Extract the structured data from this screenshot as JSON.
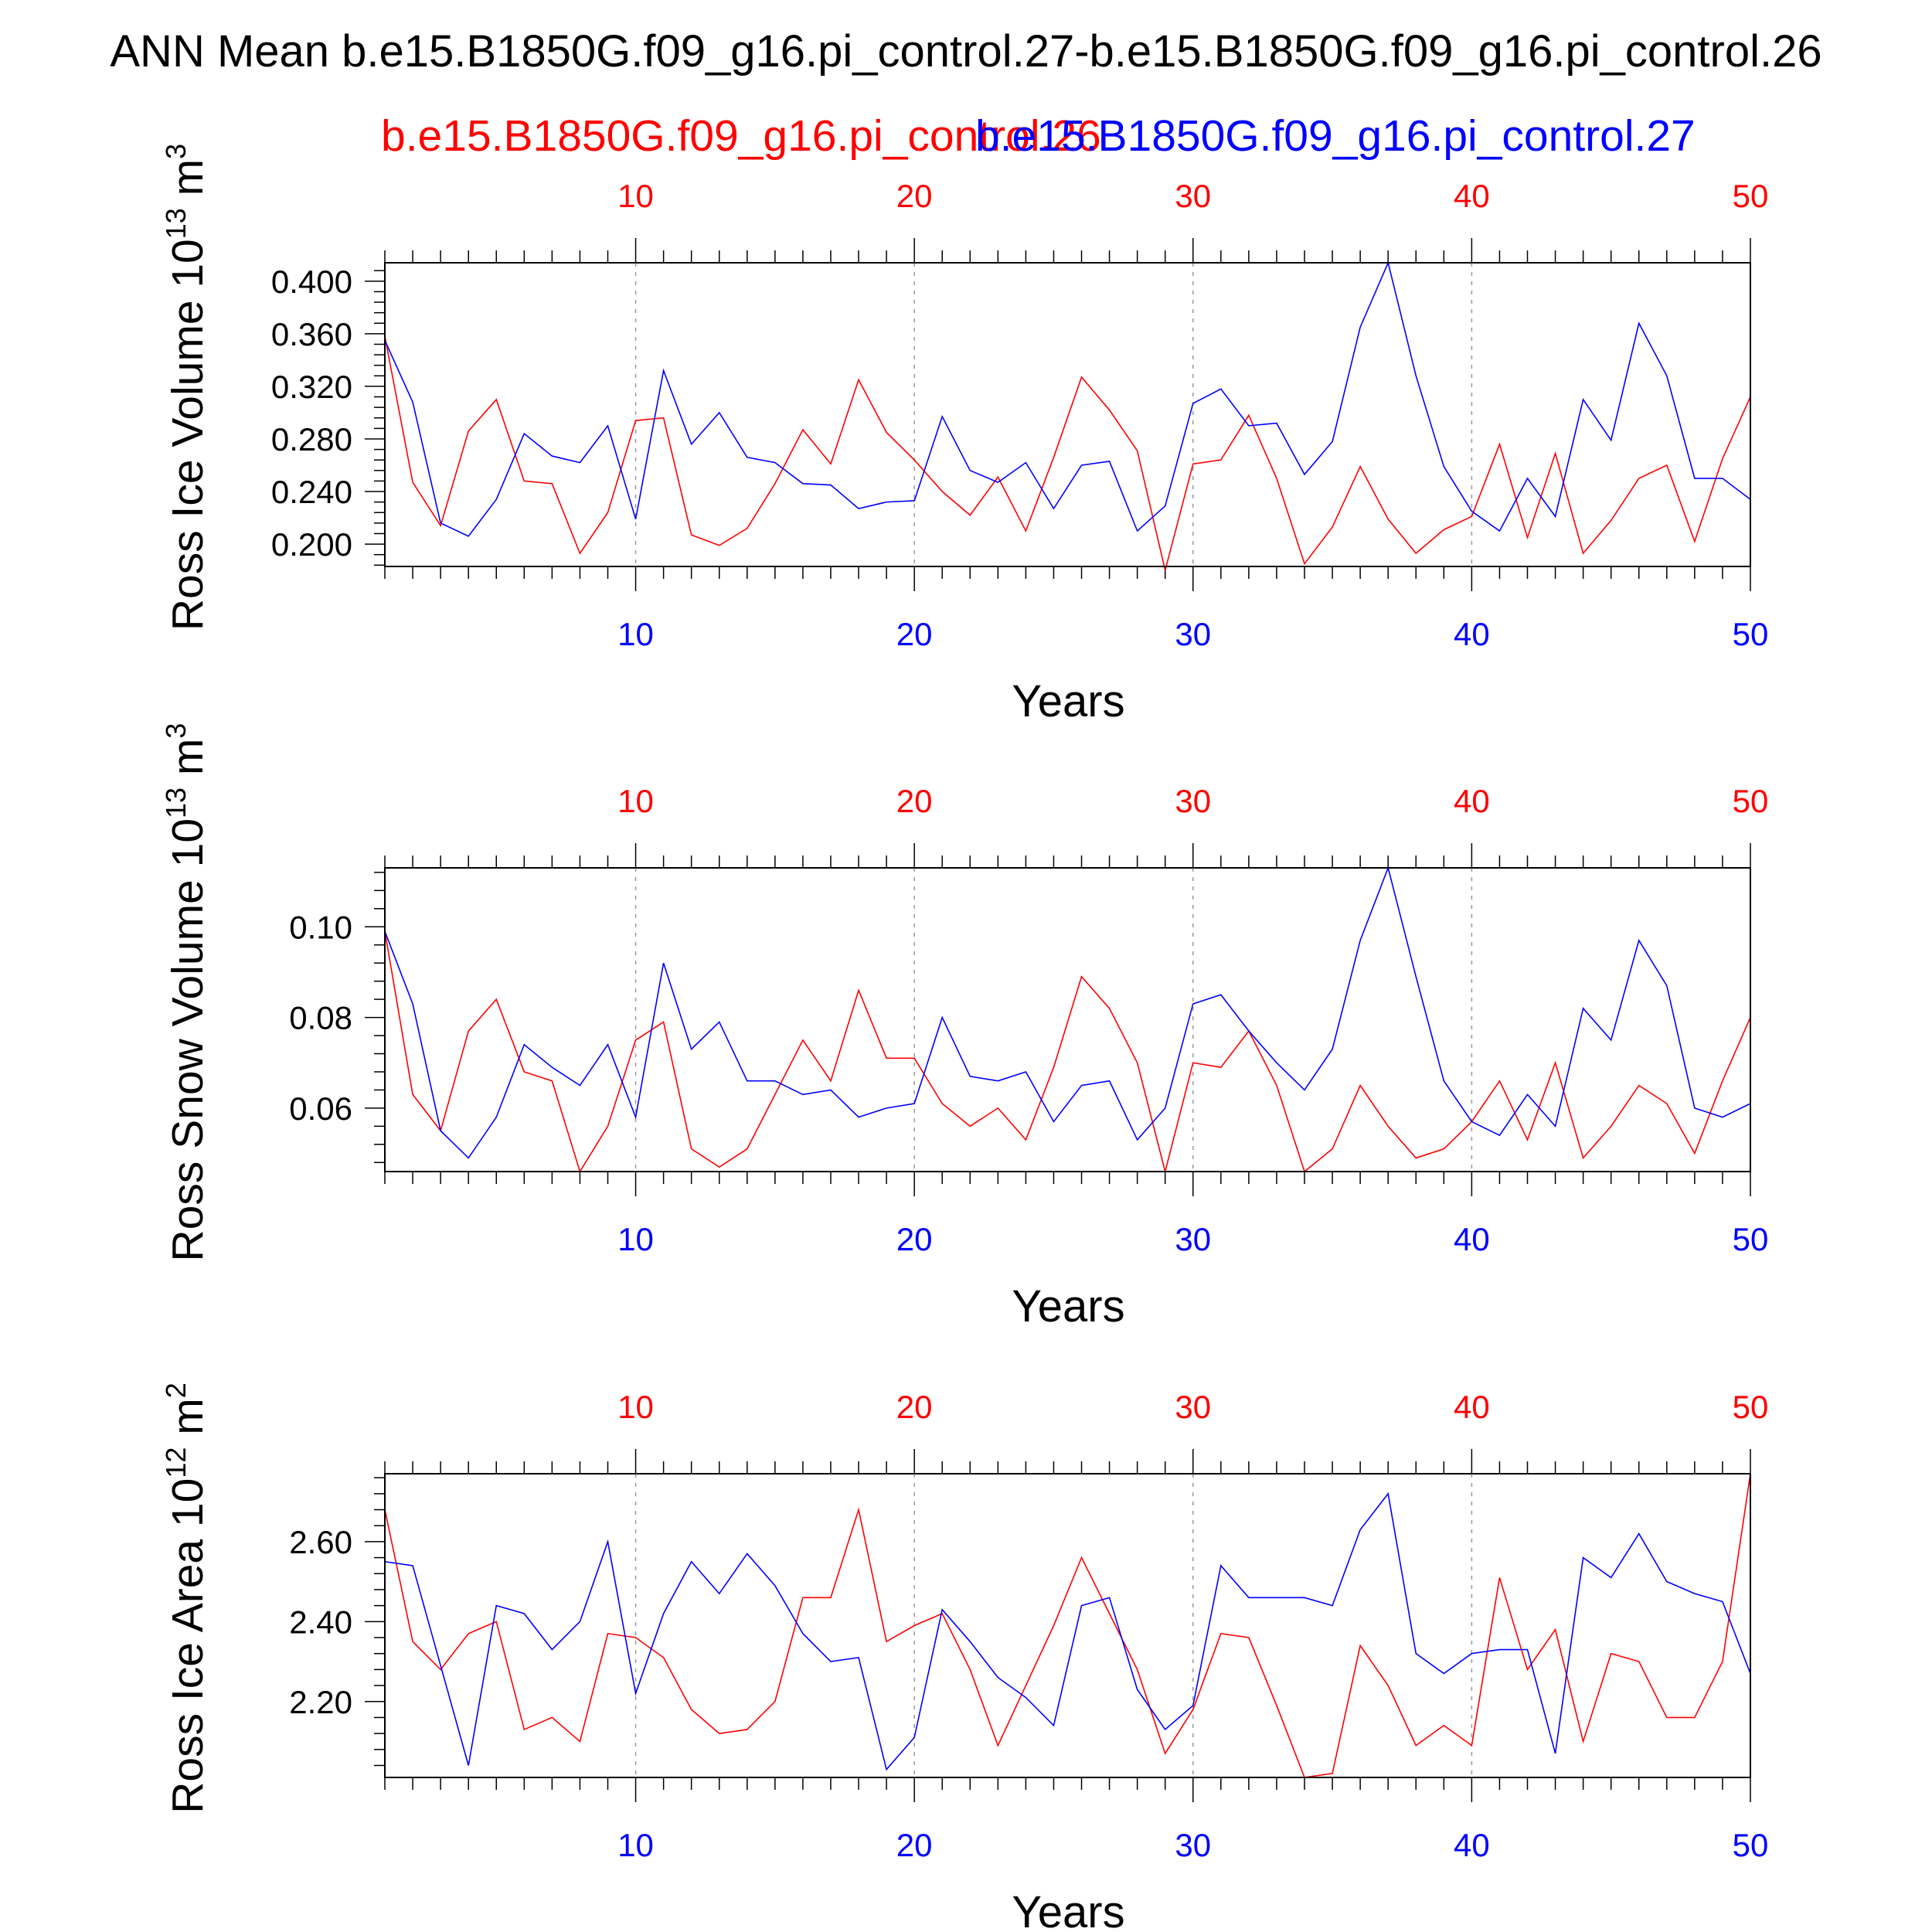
{
  "title": "ANN Mean b.e15.B1850G.f09_g16.pi_control.27-b.e15.B1850G.f09_g16.pi_control.26",
  "legend": {
    "red_label": "b.e15.B1850G.f09_g16.pi_control.26",
    "blue_label": "b.e15.B1850G.f09_g16.pi_control.27"
  },
  "colors": {
    "red": "#ff0000",
    "blue": "#0000ff",
    "axis": "#000000",
    "grid": "#999999"
  },
  "chart_data": [
    {
      "type": "line",
      "ylabel": {
        "text": "Ross Ice Volume 10",
        "sup": "13",
        "unit": " m",
        "unitsup": "3"
      },
      "xlabel": "Years",
      "xlim": [
        1,
        50
      ],
      "ylim": [
        0.183,
        0.414
      ],
      "yticks": [
        "0.200",
        "0.240",
        "0.280",
        "0.320",
        "0.360",
        "0.400"
      ],
      "xticks": [
        "10",
        "20",
        "30",
        "40",
        "50"
      ],
      "x": [
        1,
        2,
        3,
        4,
        5,
        6,
        7,
        8,
        9,
        10,
        11,
        12,
        13,
        14,
        15,
        16,
        17,
        18,
        19,
        20,
        21,
        22,
        23,
        24,
        25,
        26,
        27,
        28,
        29,
        30,
        31,
        32,
        33,
        34,
        35,
        36,
        37,
        38,
        39,
        40,
        41,
        42,
        43,
        44,
        45,
        46,
        47,
        48,
        49,
        50
      ],
      "series": [
        {
          "name": "b.e15.B1850G.f09_g16.pi_control.26",
          "color": "red",
          "values": [
            0.358,
            0.247,
            0.214,
            0.286,
            0.31,
            0.248,
            0.246,
            0.193,
            0.224,
            0.294,
            0.296,
            0.207,
            0.199,
            0.212,
            0.246,
            0.287,
            0.261,
            0.325,
            0.285,
            0.264,
            0.24,
            0.222,
            0.251,
            0.21,
            0.266,
            0.327,
            0.302,
            0.271,
            0.18,
            0.261,
            0.264,
            0.298,
            0.25,
            0.185,
            0.213,
            0.259,
            0.219,
            0.193,
            0.211,
            0.221,
            0.276,
            0.205,
            0.269,
            0.193,
            0.218,
            0.25,
            0.26,
            0.202,
            0.265,
            0.312
          ]
        },
        {
          "name": "b.e15.B1850G.f09_g16.pi_control.27",
          "color": "blue",
          "values": [
            0.355,
            0.308,
            0.216,
            0.206,
            0.234,
            0.284,
            0.267,
            0.262,
            0.29,
            0.219,
            0.332,
            0.276,
            0.3,
            0.266,
            0.262,
            0.246,
            0.245,
            0.227,
            0.232,
            0.233,
            0.297,
            0.256,
            0.247,
            0.262,
            0.227,
            0.26,
            0.263,
            0.21,
            0.229,
            0.307,
            0.318,
            0.29,
            0.292,
            0.253,
            0.278,
            0.365,
            0.414,
            0.328,
            0.259,
            0.225,
            0.21,
            0.25,
            0.221,
            0.31,
            0.279,
            0.368,
            0.328,
            0.25,
            0.25,
            0.234
          ]
        }
      ]
    },
    {
      "type": "line",
      "ylabel": {
        "text": "Ross Snow Volume 10",
        "sup": "13",
        "unit": " m",
        "unitsup": "3"
      },
      "xlabel": "Years",
      "xlim": [
        1,
        50
      ],
      "ylim": [
        0.046,
        0.113
      ],
      "yticks": [
        "0.06",
        "0.08",
        "0.10"
      ],
      "xticks": [
        "10",
        "20",
        "30",
        "40",
        "50"
      ],
      "x": [
        1,
        2,
        3,
        4,
        5,
        6,
        7,
        8,
        9,
        10,
        11,
        12,
        13,
        14,
        15,
        16,
        17,
        18,
        19,
        20,
        21,
        22,
        23,
        24,
        25,
        26,
        27,
        28,
        29,
        30,
        31,
        32,
        33,
        34,
        35,
        36,
        37,
        38,
        39,
        40,
        41,
        42,
        43,
        44,
        45,
        46,
        47,
        48,
        49,
        50
      ],
      "series": [
        {
          "name": "b.e15.B1850G.f09_g16.pi_control.26",
          "color": "red",
          "values": [
            0.099,
            0.063,
            0.055,
            0.077,
            0.084,
            0.068,
            0.066,
            0.046,
            0.056,
            0.075,
            0.079,
            0.051,
            0.047,
            0.051,
            0.063,
            0.075,
            0.066,
            0.086,
            0.071,
            0.071,
            0.061,
            0.056,
            0.06,
            0.053,
            0.069,
            0.089,
            0.082,
            0.07,
            0.046,
            0.07,
            0.069,
            0.077,
            0.065,
            0.046,
            0.051,
            0.065,
            0.056,
            0.049,
            0.051,
            0.057,
            0.066,
            0.053,
            0.07,
            0.049,
            0.056,
            0.065,
            0.061,
            0.05,
            0.066,
            0.08
          ]
        },
        {
          "name": "b.e15.B1850G.f09_g16.pi_control.27",
          "color": "blue",
          "values": [
            0.099,
            0.083,
            0.055,
            0.049,
            0.058,
            0.074,
            0.069,
            0.065,
            0.074,
            0.058,
            0.092,
            0.073,
            0.079,
            0.066,
            0.066,
            0.063,
            0.064,
            0.058,
            0.06,
            0.061,
            0.08,
            0.067,
            0.066,
            0.068,
            0.057,
            0.065,
            0.066,
            0.053,
            0.06,
            0.083,
            0.085,
            0.077,
            0.07,
            0.064,
            0.073,
            0.097,
            0.113,
            0.089,
            0.066,
            0.057,
            0.054,
            0.063,
            0.056,
            0.082,
            0.075,
            0.097,
            0.087,
            0.06,
            0.058,
            0.061
          ]
        }
      ]
    },
    {
      "type": "line",
      "ylabel": {
        "text": "Ross Ice Area 10",
        "sup": "12",
        "unit": " m",
        "unitsup": "2"
      },
      "xlabel": "Years",
      "xlim": [
        1,
        50
      ],
      "ylim": [
        2.01,
        2.77
      ],
      "yticks": [
        "2.20",
        "2.40",
        "2.60"
      ],
      "xticks": [
        "10",
        "20",
        "30",
        "40",
        "50"
      ],
      "x": [
        1,
        2,
        3,
        4,
        5,
        6,
        7,
        8,
        9,
        10,
        11,
        12,
        13,
        14,
        15,
        16,
        17,
        18,
        19,
        20,
        21,
        22,
        23,
        24,
        25,
        26,
        27,
        28,
        29,
        30,
        31,
        32,
        33,
        34,
        35,
        36,
        37,
        38,
        39,
        40,
        41,
        42,
        43,
        44,
        45,
        46,
        47,
        48,
        49,
        50
      ],
      "series": [
        {
          "name": "b.e15.B1850G.f09_g16.pi_control.26",
          "color": "red",
          "values": [
            2.68,
            2.35,
            2.28,
            2.37,
            2.4,
            2.13,
            2.16,
            2.1,
            2.37,
            2.36,
            2.31,
            2.18,
            2.12,
            2.13,
            2.2,
            2.46,
            2.46,
            2.68,
            2.35,
            2.39,
            2.42,
            2.28,
            2.09,
            2.24,
            2.39,
            2.56,
            2.42,
            2.28,
            2.07,
            2.18,
            2.37,
            2.36,
            2.19,
            2.01,
            2.02,
            2.34,
            2.24,
            2.09,
            2.14,
            2.09,
            2.51,
            2.28,
            2.38,
            2.1,
            2.32,
            2.3,
            2.16,
            2.16,
            2.3,
            2.77
          ]
        },
        {
          "name": "b.e15.B1850G.f09_g16.pi_control.27",
          "color": "blue",
          "values": [
            2.55,
            2.54,
            2.29,
            2.04,
            2.44,
            2.42,
            2.33,
            2.4,
            2.6,
            2.22,
            2.42,
            2.55,
            2.47,
            2.57,
            2.49,
            2.37,
            2.3,
            2.31,
            2.03,
            2.11,
            2.43,
            2.35,
            2.26,
            2.21,
            2.14,
            2.44,
            2.46,
            2.23,
            2.13,
            2.19,
            2.54,
            2.46,
            2.46,
            2.46,
            2.44,
            2.63,
            2.72,
            2.32,
            2.27,
            2.32,
            2.33,
            2.33,
            2.07,
            2.56,
            2.51,
            2.62,
            2.5,
            2.47,
            2.45,
            2.27
          ]
        }
      ]
    }
  ]
}
